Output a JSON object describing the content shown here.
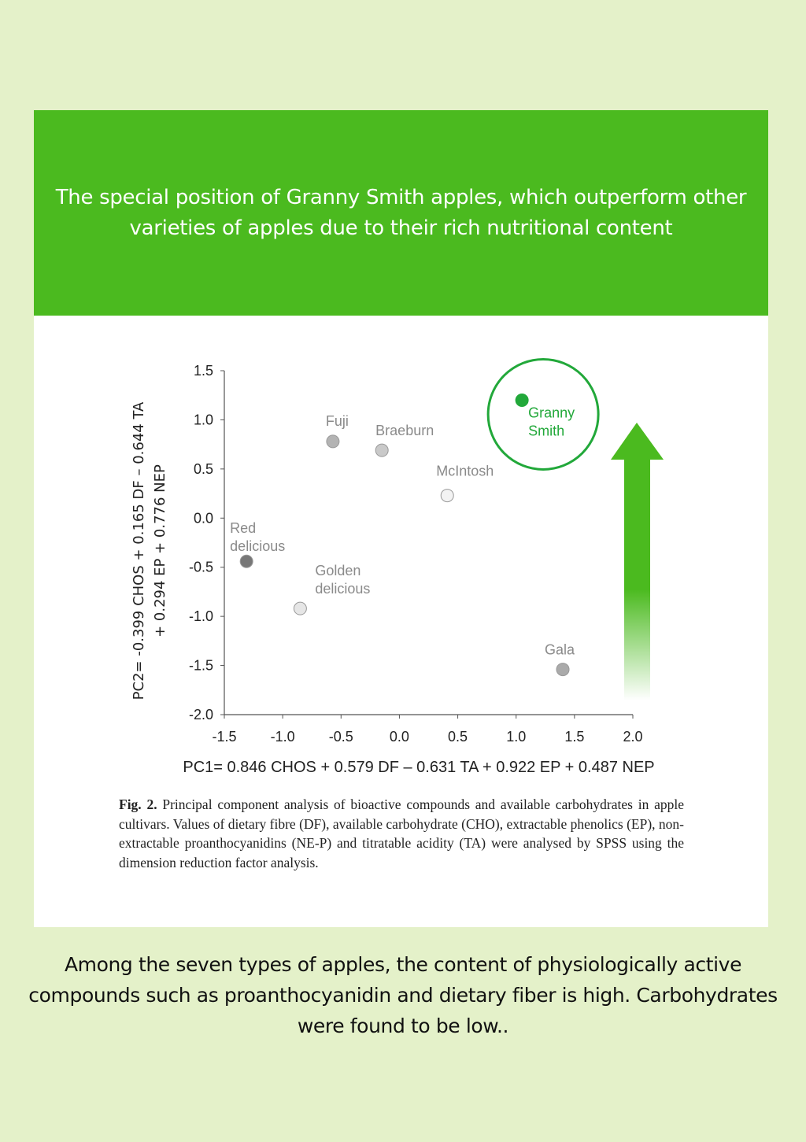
{
  "header": {
    "title": "The special position of Granny Smith apples, which outperform other varieties of apples due to their rich nutritional content"
  },
  "colors": {
    "background": "#e4f1c9",
    "header": "#4bba1f",
    "highlight": "#22a83a",
    "arrow": "#4bba1f"
  },
  "chart_data": {
    "type": "scatter",
    "title": "",
    "xlabel": "PC1= 0.846 CHOS  + 0.579 DF – 0.631 TA + 0.922 EP + 0.487 NEP",
    "ylabel_line1": "PC2= -0.399 CHOS  + 0.165 DF – 0.644 TA",
    "ylabel_line2": "+ 0.294 EP + 0.776 NEP",
    "xlim": [
      -1.5,
      2.0
    ],
    "ylim": [
      -2.0,
      1.5
    ],
    "x_ticks": [
      "-1.5",
      "-1.0",
      "-0.5",
      "0.0",
      "0.5",
      "1.0",
      "1.5",
      "2.0"
    ],
    "y_ticks": [
      "1.5",
      "1.0",
      "0.5",
      "0.0",
      "-0.5",
      "-1.0",
      "-1.5",
      "-2.0"
    ],
    "grid": false,
    "points": [
      {
        "label": [
          "Granny",
          "Smith"
        ],
        "x": 1.05,
        "y": 1.2,
        "color": "#22a83a",
        "highlighted": true
      },
      {
        "label": [
          "Fuji"
        ],
        "x": -0.57,
        "y": 0.78,
        "color": "#b3b3b3"
      },
      {
        "label": [
          "Braeburn"
        ],
        "x": -0.15,
        "y": 0.69,
        "color": "#c9c9c9"
      },
      {
        "label": [
          "McIntosh"
        ],
        "x": 0.41,
        "y": 0.23,
        "color": "#f3f3f3"
      },
      {
        "label": [
          "Red",
          "delicious"
        ],
        "x": -1.31,
        "y": -0.44,
        "color": "#777777"
      },
      {
        "label": [
          "Golden",
          "delicious"
        ],
        "x": -0.85,
        "y": -0.92,
        "color": "#e6e6e6"
      },
      {
        "label": [
          "Gala"
        ],
        "x": 1.4,
        "y": -1.54,
        "color": "#aaaaaa"
      }
    ]
  },
  "caption": {
    "fig_label": "Fig. 2.",
    "text": " Principal component analysis of bioactive compounds and available carbohydrates in apple cultivars. Values of dietary fibre (DF), available carbohydrate (CHO), extractable phenolics (EP), non-extractable proanthocyanidins (NE-P) and titratable acidity (TA) were analysed by SPSS using the dimension reduction factor analysis."
  },
  "footer": {
    "text": "Among the seven types of apples, the content of physiologically active compounds such as proanthocyanidin and dietary fiber is high. Carbohydrates were found to be low.."
  }
}
